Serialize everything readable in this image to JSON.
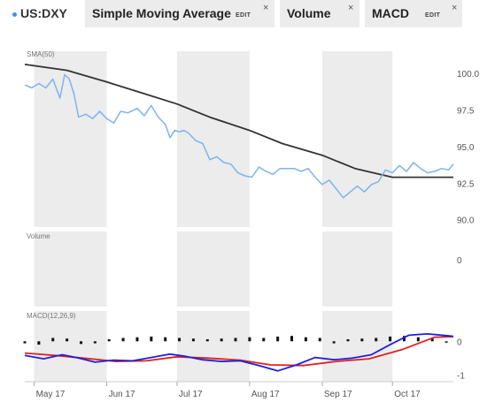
{
  "toolbar": {
    "symbol": "US:DXY",
    "tabs": [
      {
        "label": "Simple Moving Average",
        "edit": "EDIT",
        "close": "×"
      },
      {
        "label": "Volume",
        "close": "×"
      },
      {
        "label": "MACD",
        "edit": "EDIT",
        "close": "×"
      }
    ]
  },
  "colors": {
    "price": "#7cb5ec",
    "sma": "#333333",
    "macd_line": "#1f1fe0",
    "signal_line": "#e02020",
    "histogram": "#111111",
    "shade": "#ececec",
    "symbol_dot": "#4a90d9"
  },
  "chart_data": [
    {
      "type": "line",
      "panel": "price",
      "title": "SMA(50)",
      "x_tick_labels": [
        "May 17",
        "Jun 17",
        "Jul 17",
        "Aug 17",
        "Sep 17",
        "Oct 17"
      ],
      "x_ticks": [
        "2017-05-01",
        "2017-06-01",
        "2017-07-01",
        "2017-08-01",
        "2017-09-01",
        "2017-10-01"
      ],
      "x_range": [
        "2017-04-27",
        "2017-10-27"
      ],
      "shaded_months": [
        "2017-05",
        "2017-07",
        "2017-09"
      ],
      "ylim": [
        89.5,
        101.5
      ],
      "yticks": [
        "90.0",
        "92.5",
        "95.0",
        "97.5",
        "100.0"
      ],
      "grid": false,
      "series": [
        {
          "name": "US:DXY",
          "x": [
            "2017-04-27",
            "2017-04-30",
            "2017-05-03",
            "2017-05-06",
            "2017-05-09",
            "2017-05-12",
            "2017-05-14",
            "2017-05-16",
            "2017-05-18",
            "2017-05-20",
            "2017-05-23",
            "2017-05-26",
            "2017-05-29",
            "2017-06-01",
            "2017-06-04",
            "2017-06-07",
            "2017-06-10",
            "2017-06-14",
            "2017-06-17",
            "2017-06-20",
            "2017-06-23",
            "2017-06-26",
            "2017-06-28",
            "2017-06-30",
            "2017-07-02",
            "2017-07-04",
            "2017-07-06",
            "2017-07-09",
            "2017-07-12",
            "2017-07-15",
            "2017-07-18",
            "2017-07-21",
            "2017-07-24",
            "2017-07-27",
            "2017-07-30",
            "2017-08-02",
            "2017-08-05",
            "2017-08-08",
            "2017-08-11",
            "2017-08-14",
            "2017-08-17",
            "2017-08-20",
            "2017-08-23",
            "2017-08-26",
            "2017-08-29",
            "2017-09-01",
            "2017-09-04",
            "2017-09-07",
            "2017-09-10",
            "2017-09-13",
            "2017-09-16",
            "2017-09-19",
            "2017-09-22",
            "2017-09-25",
            "2017-09-28",
            "2017-10-01",
            "2017-10-04",
            "2017-10-07",
            "2017-10-10",
            "2017-10-13",
            "2017-10-16",
            "2017-10-19",
            "2017-10-22",
            "2017-10-25",
            "2017-10-27"
          ],
          "values": [
            99.2,
            99.0,
            99.3,
            99.0,
            99.6,
            98.3,
            99.9,
            99.6,
            98.6,
            97.0,
            97.2,
            96.9,
            97.4,
            96.9,
            96.6,
            97.4,
            97.3,
            97.6,
            97.1,
            97.8,
            97.0,
            96.5,
            95.6,
            96.1,
            96.0,
            96.1,
            95.9,
            95.4,
            95.2,
            94.1,
            94.3,
            93.9,
            93.8,
            93.2,
            93.0,
            92.9,
            93.6,
            93.3,
            93.1,
            93.5,
            93.5,
            93.5,
            93.3,
            93.5,
            92.9,
            92.4,
            92.7,
            92.1,
            91.5,
            91.9,
            92.3,
            91.9,
            92.4,
            92.6,
            93.4,
            93.2,
            93.7,
            93.3,
            93.9,
            93.5,
            93.2,
            93.3,
            93.5,
            93.4,
            93.8
          ]
        },
        {
          "name": "SMA(50)",
          "x": [
            "2017-04-27",
            "2017-05-15",
            "2017-06-01",
            "2017-06-15",
            "2017-07-01",
            "2017-07-15",
            "2017-08-01",
            "2017-08-15",
            "2017-09-01",
            "2017-09-15",
            "2017-10-01",
            "2017-10-15",
            "2017-10-27"
          ],
          "values": [
            100.6,
            100.2,
            99.4,
            98.7,
            97.9,
            97.0,
            96.1,
            95.2,
            94.4,
            93.5,
            92.9,
            92.9,
            92.9
          ]
        }
      ]
    },
    {
      "type": "bar",
      "panel": "volume",
      "title": "Volume",
      "yticks": [
        "0"
      ]
    },
    {
      "type": "line",
      "panel": "macd",
      "title": "MACD(12,26,9)",
      "ylim": [
        -1.2,
        0.9
      ],
      "yticks": [
        "0",
        "-1"
      ],
      "series": [
        {
          "name": "MACD",
          "x": [
            "2017-04-27",
            "2017-05-05",
            "2017-05-13",
            "2017-05-20",
            "2017-05-27",
            "2017-06-04",
            "2017-06-12",
            "2017-06-20",
            "2017-06-28",
            "2017-07-04",
            "2017-07-12",
            "2017-07-20",
            "2017-07-28",
            "2017-08-05",
            "2017-08-13",
            "2017-08-21",
            "2017-08-29",
            "2017-09-06",
            "2017-09-14",
            "2017-09-22",
            "2017-09-30",
            "2017-10-08",
            "2017-10-16",
            "2017-10-27"
          ],
          "values": [
            -0.42,
            -0.52,
            -0.4,
            -0.5,
            -0.62,
            -0.56,
            -0.58,
            -0.48,
            -0.38,
            -0.44,
            -0.55,
            -0.6,
            -0.58,
            -0.72,
            -0.88,
            -0.7,
            -0.48,
            -0.55,
            -0.5,
            -0.4,
            -0.1,
            0.18,
            0.22,
            0.15
          ]
        },
        {
          "name": "Signal",
          "x": [
            "2017-04-27",
            "2017-05-10",
            "2017-05-22",
            "2017-06-05",
            "2017-06-18",
            "2017-07-01",
            "2017-07-14",
            "2017-07-28",
            "2017-08-10",
            "2017-08-24",
            "2017-09-07",
            "2017-09-21",
            "2017-10-05",
            "2017-10-19",
            "2017-10-27"
          ],
          "values": [
            -0.35,
            -0.42,
            -0.5,
            -0.6,
            -0.58,
            -0.46,
            -0.5,
            -0.56,
            -0.7,
            -0.72,
            -0.6,
            -0.52,
            -0.25,
            0.12,
            0.14
          ]
        },
        {
          "name": "Histogram",
          "type": "bar",
          "x": [
            "2017-04-27",
            "2017-05-03",
            "2017-05-09",
            "2017-05-15",
            "2017-05-21",
            "2017-05-27",
            "2017-06-02",
            "2017-06-08",
            "2017-06-14",
            "2017-06-20",
            "2017-06-26",
            "2017-07-02",
            "2017-07-08",
            "2017-07-14",
            "2017-07-20",
            "2017-07-26",
            "2017-08-01",
            "2017-08-07",
            "2017-08-13",
            "2017-08-19",
            "2017-08-25",
            "2017-08-31",
            "2017-09-06",
            "2017-09-12",
            "2017-09-18",
            "2017-09-24",
            "2017-09-30",
            "2017-10-06",
            "2017-10-12",
            "2017-10-18",
            "2017-10-24"
          ],
          "values": [
            -0.06,
            -0.1,
            0.1,
            0.08,
            -0.08,
            -0.06,
            0.06,
            0.1,
            0.12,
            0.14,
            0.12,
            0.1,
            0.08,
            0.06,
            0.08,
            0.1,
            0.12,
            0.1,
            0.14,
            0.16,
            0.12,
            0.1,
            -0.06,
            0.06,
            0.08,
            0.1,
            0.14,
            0.16,
            0.12,
            0.08,
            -0.04
          ]
        }
      ]
    }
  ]
}
